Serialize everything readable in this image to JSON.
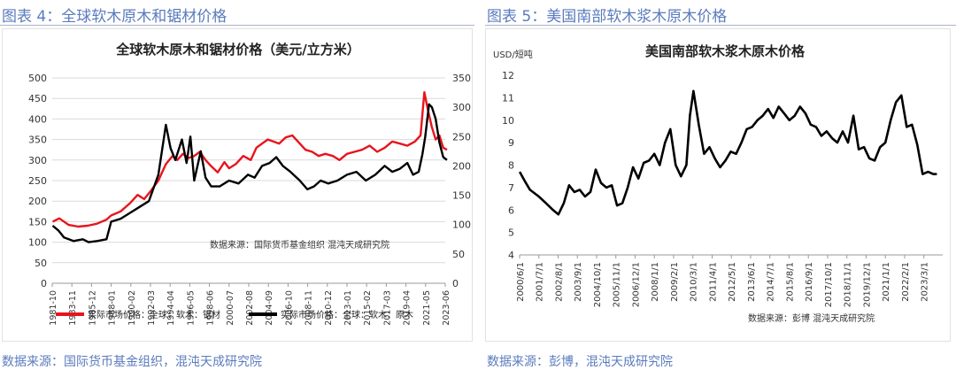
{
  "left": {
    "figure_title": "图表 4：全球软木原木和锯材价格",
    "source_note": "数据来源：国际货币基金组织，混沌天成研究院"
  },
  "right": {
    "figure_title": "图表 5：美国南部软木浆木原木价格",
    "source_note": "数据来源：彭博，混沌天成研究院"
  },
  "colors": {
    "lumber": "#e8141c",
    "log": "#000000",
    "caption": "#5a7bbd"
  },
  "chart_data": [
    {
      "type": "line",
      "title": "全球软木原木和锯材价格（美元/立方米）",
      "inner_note": "数据来源：国际货币基金组织   混沌天成研究院",
      "x_ticks": [
        "1981-10",
        "1983-11",
        "1985-12",
        "1988-01",
        "1990-02",
        "1992-03",
        "1994-04",
        "1996-05",
        "1998-06",
        "2000-07",
        "2002-08",
        "2004-09",
        "2006-10",
        "2008-11",
        "2010-12",
        "2013-01",
        "2015-02",
        "2017-03",
        "2019-04",
        "2021-05",
        "2023-06"
      ],
      "y_left": {
        "min": 0,
        "max": 500,
        "ticks": [
          0,
          50,
          100,
          150,
          200,
          250,
          300,
          350,
          400,
          450,
          500
        ]
      },
      "y_right": {
        "min": 0,
        "max": 350,
        "ticks": [
          0,
          50,
          100,
          150,
          200,
          250,
          300,
          350
        ]
      },
      "legend_position": "bottom",
      "series": [
        {
          "name": "实际市场价格：全球：软木：锯材",
          "axis": "left",
          "color": "#e8141c",
          "x": [
            1981.8,
            1982.5,
            1983.5,
            1984.5,
            1985.5,
            1986.5,
            1987.5,
            1988.0,
            1989.0,
            1990.0,
            1990.8,
            1991.5,
            1992.2,
            1993.0,
            1993.8,
            1994.5,
            1995.0,
            1995.6,
            1996.2,
            1996.8,
            1997.4,
            1998.0,
            1998.6,
            1999.3,
            2000.0,
            2000.5,
            2001.2,
            2002.0,
            2002.8,
            2003.4,
            2004.0,
            2004.6,
            2005.2,
            2005.8,
            2006.5,
            2007.2,
            2008.0,
            2008.6,
            2009.3,
            2010.0,
            2010.7,
            2011.5,
            2012.2,
            2013.0,
            2013.8,
            2014.6,
            2015.4,
            2016.2,
            2017.0,
            2017.8,
            2018.6,
            2019.4,
            2020.2,
            2020.8,
            2021.2,
            2021.6,
            2022.0,
            2022.4,
            2022.8,
            2023.2,
            2023.6
          ],
          "values": [
            150,
            158,
            142,
            138,
            140,
            145,
            155,
            165,
            175,
            195,
            215,
            205,
            225,
            250,
            290,
            310,
            300,
            315,
            305,
            310,
            320,
            300,
            285,
            270,
            295,
            280,
            290,
            310,
            300,
            330,
            340,
            350,
            345,
            340,
            355,
            360,
            340,
            325,
            320,
            310,
            315,
            310,
            300,
            315,
            320,
            325,
            335,
            320,
            330,
            345,
            340,
            335,
            345,
            360,
            465,
            420,
            380,
            350,
            360,
            330,
            325
          ]
        },
        {
          "name": "实际市场价格：全球：软木：原木",
          "axis": "right",
          "color": "#000000",
          "x": [
            1981.8,
            1982.4,
            1983.0,
            1984.0,
            1985.0,
            1985.6,
            1986.5,
            1987.5,
            1988.0,
            1989.0,
            1990.0,
            1991.0,
            1992.0,
            1993.0,
            1993.8,
            1994.3,
            1994.8,
            1995.5,
            1996.0,
            1996.4,
            1996.8,
            1997.5,
            1998.0,
            1998.6,
            1999.5,
            2000.5,
            2001.5,
            2002.5,
            2003.2,
            2004.0,
            2004.8,
            2005.5,
            2006.2,
            2007.0,
            2008.0,
            2008.8,
            2009.5,
            2010.2,
            2011.0,
            2012.0,
            2013.0,
            2014.0,
            2015.0,
            2016.0,
            2017.0,
            2017.8,
            2018.6,
            2019.4,
            2020.0,
            2020.6,
            2021.0,
            2021.3,
            2021.7,
            2022.0,
            2022.4,
            2022.8,
            2023.2,
            2023.6
          ],
          "values": [
            98,
            90,
            78,
            72,
            75,
            70,
            72,
            75,
            105,
            110,
            120,
            130,
            140,
            185,
            270,
            230,
            210,
            245,
            205,
            250,
            175,
            225,
            180,
            165,
            165,
            175,
            170,
            185,
            180,
            200,
            205,
            215,
            200,
            190,
            175,
            160,
            165,
            175,
            170,
            175,
            185,
            190,
            175,
            185,
            200,
            190,
            195,
            205,
            185,
            190,
            220,
            250,
            305,
            300,
            280,
            240,
            215,
            210
          ]
        }
      ]
    },
    {
      "type": "line",
      "title": "美国南部软木浆木原木价格",
      "ylabel": "USD/短吨",
      "inner_note": "数据来源：彭博   混沌天成研究院",
      "x_ticks": [
        "2000/6/1",
        "2001/7/1",
        "2002/8/1",
        "2003/9/1",
        "2004/10/1",
        "2005/11/1",
        "2006/12/1",
        "2008/1/1",
        "2009/2/1",
        "2010/3/1",
        "2011/4/1",
        "2012/5/1",
        "2013/6/1",
        "2014/7/1",
        "2015/8/1",
        "2016/9/1",
        "2017/10/1",
        "2018/11/1",
        "2019/12/1",
        "2021/1/1",
        "2022/2/1",
        "2023/3/1"
      ],
      "ylim": [
        4,
        12
      ],
      "y_ticks": [
        4,
        5,
        6,
        7,
        8,
        9,
        10,
        11,
        12
      ],
      "series": [
        {
          "color": "#000000",
          "x": [
            2000.42,
            2000.7,
            2001.0,
            2001.5,
            2001.9,
            2002.3,
            2002.6,
            2002.9,
            2003.2,
            2003.5,
            2003.8,
            2004.1,
            2004.4,
            2004.7,
            2005.0,
            2005.3,
            2005.6,
            2005.9,
            2006.2,
            2006.5,
            2006.8,
            2007.1,
            2007.4,
            2007.7,
            2008.0,
            2008.3,
            2008.6,
            2008.9,
            2009.2,
            2009.5,
            2009.8,
            2010.0,
            2010.2,
            2010.5,
            2010.8,
            2011.1,
            2011.4,
            2011.7,
            2012.0,
            2012.3,
            2012.6,
            2012.9,
            2013.2,
            2013.5,
            2013.8,
            2014.1,
            2014.4,
            2014.7,
            2015.0,
            2015.3,
            2015.6,
            2015.9,
            2016.2,
            2016.5,
            2016.8,
            2017.1,
            2017.4,
            2017.7,
            2018.0,
            2018.3,
            2018.6,
            2018.9,
            2019.2,
            2019.5,
            2019.8,
            2020.1,
            2020.4,
            2020.7,
            2021.0,
            2021.3,
            2021.6,
            2021.9,
            2022.2,
            2022.5,
            2022.8,
            2023.1,
            2023.4,
            2023.7,
            2023.9
          ],
          "values": [
            7.7,
            7.3,
            6.9,
            6.6,
            6.3,
            6.0,
            5.8,
            6.3,
            7.1,
            6.8,
            6.9,
            6.6,
            6.8,
            7.8,
            7.2,
            7.0,
            7.1,
            6.2,
            6.3,
            7.0,
            7.9,
            7.4,
            8.1,
            8.2,
            8.5,
            8.0,
            9.0,
            9.6,
            8.0,
            7.5,
            8.0,
            10.2,
            11.3,
            9.8,
            8.5,
            8.8,
            8.3,
            7.9,
            8.2,
            8.6,
            8.5,
            9.0,
            9.6,
            9.7,
            10.0,
            10.2,
            10.5,
            10.1,
            10.6,
            10.3,
            10.0,
            10.2,
            10.6,
            10.3,
            9.8,
            9.7,
            9.3,
            9.5,
            9.2,
            9.0,
            9.5,
            9.0,
            10.2,
            8.7,
            8.8,
            8.3,
            8.2,
            8.8,
            9.0,
            10.0,
            10.8,
            11.1,
            9.7,
            9.8,
            8.9,
            7.6,
            7.7,
            7.6,
            7.6
          ]
        }
      ]
    }
  ]
}
